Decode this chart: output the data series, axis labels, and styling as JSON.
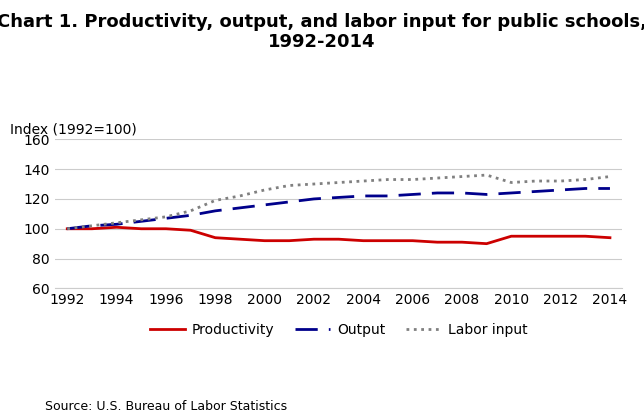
{
  "title": "Chart 1. Productivity, output, and labor input for public schools,\n1992-2014",
  "ylabel": "Index (1992=100)",
  "source": "Source: U.S. Bureau of Labor Statistics",
  "years": [
    1992,
    1993,
    1994,
    1995,
    1996,
    1997,
    1998,
    1999,
    2000,
    2001,
    2002,
    2003,
    2004,
    2005,
    2006,
    2007,
    2008,
    2009,
    2010,
    2011,
    2012,
    2013,
    2014
  ],
  "productivity": [
    100,
    100,
    101,
    100,
    100,
    99,
    94,
    93,
    92,
    92,
    93,
    93,
    92,
    92,
    92,
    91,
    91,
    90,
    95,
    95,
    95,
    95,
    94
  ],
  "output": [
    100,
    102,
    103,
    105,
    107,
    109,
    112,
    114,
    116,
    118,
    120,
    121,
    122,
    122,
    123,
    124,
    124,
    123,
    124,
    125,
    126,
    127,
    127
  ],
  "labor_input": [
    100,
    102,
    104,
    106,
    108,
    112,
    119,
    122,
    126,
    129,
    130,
    131,
    132,
    133,
    133,
    134,
    135,
    136,
    131,
    132,
    132,
    133,
    135
  ],
  "productivity_color": "#cc0000",
  "output_color": "#00008B",
  "labor_input_color": "#808080",
  "ylim": [
    60,
    160
  ],
  "yticks": [
    60,
    80,
    100,
    120,
    140,
    160
  ],
  "xlim": [
    1992,
    2014
  ],
  "xticks": [
    1992,
    1994,
    1996,
    1998,
    2000,
    2002,
    2004,
    2006,
    2008,
    2010,
    2012,
    2014
  ],
  "background_color": "#ffffff",
  "title_fontsize": 13,
  "axis_fontsize": 10,
  "legend_fontsize": 10,
  "source_fontsize": 9
}
